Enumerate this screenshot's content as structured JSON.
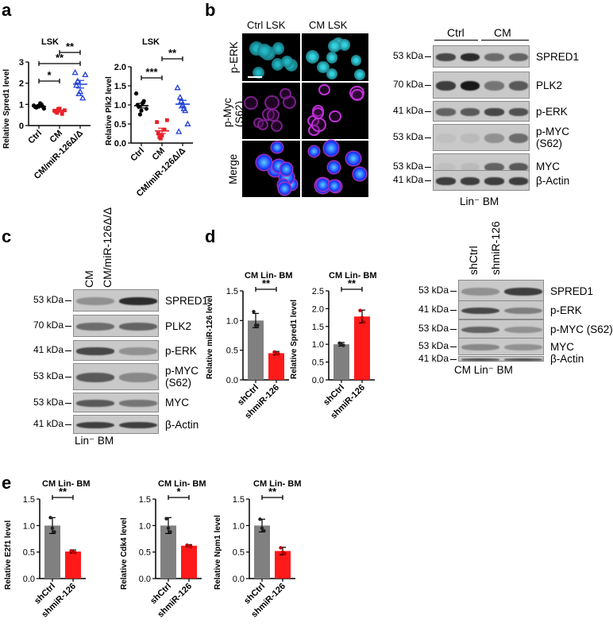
{
  "panel_labels": {
    "a": "a",
    "b": "b",
    "c": "c",
    "d": "d",
    "e": "e"
  },
  "panel_a": {
    "chart_data": [
      {
        "type": "scatter",
        "title": "LSK",
        "ylabel": "Relative Spred1 level",
        "categories": [
          "Ctrl",
          "CM",
          "CM/miR-126Δ/Δ"
        ],
        "ylim": [
          0,
          3
        ],
        "yticks": [
          0,
          1,
          2,
          3
        ],
        "colors": [
          "#000000",
          "#e8202a",
          "#2040d8"
        ],
        "markers": [
          "circle",
          "square",
          "triangle"
        ],
        "series": [
          {
            "values": [
              0.95,
              0.85,
              0.9,
              1.0,
              0.8,
              0.88,
              0.92,
              1.05,
              0.9
            ]
          },
          {
            "values": [
              0.7,
              0.6,
              0.8,
              0.55,
              0.72,
              0.66,
              0.78
            ]
          },
          {
            "values": [
              2.5,
              2.1,
              1.6,
              1.3,
              2.4,
              1.9,
              1.5
            ]
          }
        ],
        "means": [
          0.9,
          0.68,
          1.95
        ],
        "sem": [
          0.03,
          0.05,
          0.18
        ],
        "significance": [
          {
            "a": 0,
            "b": 1,
            "label": "*"
          },
          {
            "a": 1,
            "b": 2,
            "label": "**"
          },
          {
            "a": 0,
            "b": 2,
            "label": "**"
          }
        ]
      },
      {
        "type": "scatter",
        "title": "LSK",
        "ylabel": "Relative Plk2 level",
        "categories": [
          "Ctrl",
          "CM",
          "CM/miR-126Δ/Δ"
        ],
        "ylim": [
          0,
          2
        ],
        "yticks": [
          0,
          0.5,
          1.0,
          1.5,
          2.0
        ],
        "colors": [
          "#000000",
          "#e8202a",
          "#2040d8"
        ],
        "markers": [
          "circle",
          "square",
          "triangle"
        ],
        "series": [
          {
            "values": [
              1.3,
              0.95,
              0.85,
              1.1,
              0.9,
              1.0,
              0.75,
              1.05
            ]
          },
          {
            "values": [
              0.55,
              0.15,
              0.2,
              0.35,
              0.6,
              0.25,
              0.12
            ]
          },
          {
            "values": [
              1.45,
              1.2,
              1.0,
              0.85,
              0.5,
              0.3,
              1.1,
              0.9
            ]
          }
        ],
        "means": [
          0.98,
          0.32,
          1.02
        ],
        "sem": [
          0.06,
          0.07,
          0.1
        ],
        "significance": [
          {
            "a": 0,
            "b": 1,
            "label": "***"
          },
          {
            "a": 1,
            "b": 2,
            "label": "**"
          }
        ]
      }
    ],
    "tick_labels_spred": [
      "0",
      "1",
      "2",
      "3"
    ],
    "tick_labels_plk": [
      "0.0",
      "0.5",
      "1.0",
      "1.5",
      "2.0"
    ]
  },
  "panel_b": {
    "micro_cols": [
      "Ctrl LSK",
      "CM LSK"
    ],
    "micro_rows": [
      "p-ERK",
      "p-Myc\n(S62)",
      "Merge"
    ],
    "blot_lanes": [
      "Ctrl",
      "CM"
    ],
    "blot_kda": [
      "53 kDa",
      "70 kDa",
      "41 kDa",
      "53 kDa",
      "53 kDa",
      "41 kDa"
    ],
    "blot_proteins": [
      "SPRED1",
      "PLK2",
      "p-ERK",
      "p-MYC\n(S62)",
      "MYC",
      "β-Actin"
    ],
    "blot_footer": "Lin⁻ BM"
  },
  "panel_c": {
    "lanes": [
      "CM",
      "CM/miR-126Δ/Δ"
    ],
    "kda": [
      "53 kDa",
      "70 kDa",
      "41 kDa",
      "53 kDa",
      "53 kDa",
      "41 kDa"
    ],
    "proteins": [
      "SPRED1",
      "PLK2",
      "p-ERK",
      "p-MYC\n(S62)",
      "MYC",
      "β-Actin"
    ],
    "footer": "Lin⁻ BM"
  },
  "panel_d": {
    "chart_data": [
      {
        "type": "bar",
        "title": "CM Lin- BM",
        "ylabel": "Relative miR-126 level",
        "categories": [
          "shCtrl",
          "shmiR-126"
        ],
        "values": [
          1.0,
          0.45
        ],
        "errors": [
          0.12,
          0.03
        ],
        "points": [
          [
            1.15,
            0.92,
            0.92
          ],
          [
            0.47,
            0.44,
            0.44
          ]
        ],
        "ylim": [
          0,
          1.5
        ],
        "yticks": [
          0,
          0.5,
          1.0,
          1.5
        ],
        "colors": [
          "#808080",
          "#ff1a1a"
        ],
        "significance": "**"
      },
      {
        "type": "bar",
        "title": "CM Lin- BM",
        "ylabel": "Relative Spred1 level",
        "categories": [
          "shCtrl",
          "shmiR-126"
        ],
        "values": [
          1.0,
          1.78
        ],
        "errors": [
          0.05,
          0.18
        ],
        "points": [
          [
            1.03,
            0.99,
            0.97
          ],
          [
            1.95,
            1.75,
            1.62
          ]
        ],
        "ylim": [
          0,
          2.5
        ],
        "yticks": [
          0,
          0.5,
          1.0,
          1.5,
          2.0,
          2.5
        ],
        "colors": [
          "#808080",
          "#ff1a1a"
        ],
        "significance": "**"
      }
    ],
    "tick_labels_mir": [
      "0.0",
      "0.5",
      "1.0",
      "1.5"
    ],
    "tick_labels_spred": [
      "0.0",
      "0.5",
      "1.0",
      "1.5",
      "2.0",
      "2.5"
    ],
    "blot_lanes": [
      "shCtrl",
      "shmiR-126"
    ],
    "blot_kda": [
      "53 kDa",
      "41 kDa",
      "53 kDa",
      "53 kDa",
      "41 kDa"
    ],
    "blot_proteins": [
      "SPRED1",
      "p-ERK",
      "p-MYC (S62)",
      "MYC",
      "β-Actin"
    ],
    "blot_footer": "CM Lin⁻ BM"
  },
  "panel_e": {
    "chart_data": [
      {
        "type": "bar",
        "title": "CM Lin- BM",
        "ylabel": "Relative E2f1 level",
        "categories": [
          "shCtrl",
          "shmiR-126"
        ],
        "values": [
          1.0,
          0.51
        ],
        "errors": [
          0.15,
          0.03
        ],
        "points": [
          [
            1.15,
            0.95,
            0.88
          ],
          [
            0.52,
            0.5,
            0.49
          ]
        ],
        "ylim": [
          0,
          1.5
        ],
        "yticks": [
          0,
          0.5,
          1.0,
          1.5
        ],
        "colors": [
          "#808080",
          "#ff1a1a"
        ],
        "significance": "**"
      },
      {
        "type": "bar",
        "title": "CM Lin- BM",
        "ylabel": "Relative Cdk4 level",
        "categories": [
          "shCtrl",
          "shmiR-126"
        ],
        "values": [
          1.0,
          0.62
        ],
        "errors": [
          0.15,
          0.02
        ],
        "points": [
          [
            1.13,
            0.95,
            0.88
          ],
          [
            0.63,
            0.61,
            0.6
          ]
        ],
        "ylim": [
          0,
          1.5
        ],
        "yticks": [
          0,
          0.5,
          1.0,
          1.5
        ],
        "colors": [
          "#808080",
          "#ff1a1a"
        ],
        "significance": "*"
      },
      {
        "type": "bar",
        "title": "CM Lin- BM",
        "ylabel": "Relative Npm1 level",
        "categories": [
          "shCtrl",
          "shmiR-126"
        ],
        "values": [
          1.0,
          0.52
        ],
        "errors": [
          0.12,
          0.07
        ],
        "points": [
          [
            1.12,
            0.95,
            0.9
          ],
          [
            0.58,
            0.5,
            0.47
          ]
        ],
        "ylim": [
          0,
          1.5
        ],
        "yticks": [
          0,
          0.5,
          1.0,
          1.5
        ],
        "colors": [
          "#808080",
          "#ff1a1a"
        ],
        "significance": "**"
      }
    ],
    "tick_labels": [
      "0.0",
      "0.5",
      "1.0",
      "1.5"
    ]
  }
}
